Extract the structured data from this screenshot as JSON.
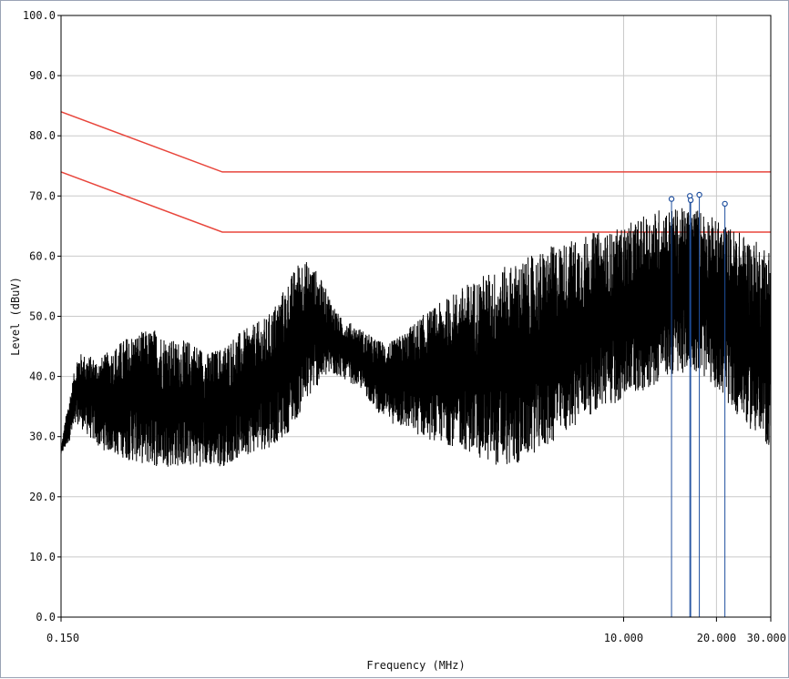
{
  "chart_data": {
    "type": "line",
    "xlabel": "Frequency (MHz)",
    "ylabel": "Level (dBuV)",
    "x_scale": "log",
    "xlim": [
      0.15,
      30
    ],
    "ylim": [
      0,
      100
    ],
    "x_ticks": [
      {
        "value": 0.15,
        "label": "0.150"
      },
      {
        "value": 10,
        "label": "10.000"
      },
      {
        "value": 20,
        "label": "20.000"
      },
      {
        "value": 30,
        "label": "30.000"
      }
    ],
    "y_ticks": [
      {
        "value": 0,
        "label": "0.0"
      },
      {
        "value": 10,
        "label": "10.0"
      },
      {
        "value": 20,
        "label": "20.0"
      },
      {
        "value": 30,
        "label": "30.0"
      },
      {
        "value": 40,
        "label": "40.0"
      },
      {
        "value": 50,
        "label": "50.0"
      },
      {
        "value": 60,
        "label": "60.0"
      },
      {
        "value": 70,
        "label": "70.0"
      },
      {
        "value": 80,
        "label": "80.0"
      },
      {
        "value": 90,
        "label": "90.0"
      },
      {
        "value": 100,
        "label": "100.0"
      }
    ],
    "grid": true,
    "limit_lines": [
      {
        "x": [
          0.15,
          0.5,
          30
        ],
        "y": [
          84,
          74,
          74
        ],
        "color": "#e8463c"
      },
      {
        "x": [
          0.15,
          0.5,
          30
        ],
        "y": [
          74,
          64,
          64
        ],
        "color": "#e8463c"
      }
    ],
    "spectrum": {
      "color": "#000000",
      "envelope": {
        "x": [
          0.15,
          0.155,
          0.17,
          0.2,
          0.25,
          0.3,
          0.35,
          0.4,
          0.45,
          0.5,
          0.55,
          0.6,
          0.7,
          0.8,
          0.9,
          1.0,
          1.1,
          1.2,
          1.4,
          1.6,
          1.8,
          2.0,
          2.2,
          2.5,
          3.0,
          3.5,
          4.0,
          4.5,
          5.0,
          5.5,
          6.0,
          7.0,
          8.0,
          9.0,
          10.0,
          11.0,
          12.0,
          13.0,
          14.0,
          15.0,
          16.0,
          17.0,
          18.0,
          20.0,
          22.0,
          24.0,
          26.0,
          28.0,
          30.0
        ],
        "min": [
          27,
          28,
          32,
          28,
          26,
          25,
          25,
          25,
          25,
          25,
          26,
          27,
          28,
          30,
          34,
          38,
          40,
          40,
          38,
          34,
          32,
          31,
          30,
          29,
          28,
          26,
          25,
          25,
          27,
          28,
          29,
          32,
          34,
          35,
          36,
          37,
          38,
          39,
          40,
          40,
          41,
          41,
          40,
          38,
          35,
          33,
          31,
          29,
          28
        ],
        "max": [
          28,
          33,
          44,
          43,
          47,
          48,
          46,
          46,
          44,
          45,
          47,
          48,
          50,
          55,
          60,
          58,
          54,
          50,
          48,
          46,
          46,
          48,
          50,
          52,
          55,
          57,
          58,
          59,
          60,
          61,
          62,
          63,
          64,
          64,
          65,
          66,
          67,
          68,
          68,
          68,
          68,
          68,
          68,
          66,
          65,
          64,
          63,
          62,
          62
        ]
      }
    },
    "peak_markers": [
      {
        "x": 14.3,
        "y": 69.5
      },
      {
        "x": 16.4,
        "y": 70.0
      },
      {
        "x": 16.5,
        "y": 69.3
      },
      {
        "x": 17.6,
        "y": 70.2
      },
      {
        "x": 21.3,
        "y": 68.7
      }
    ],
    "marker_color": "#1f4f9e"
  }
}
